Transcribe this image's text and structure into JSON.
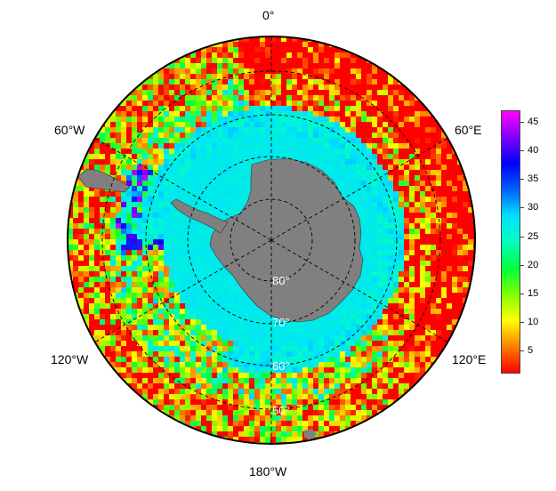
{
  "map": {
    "projection": "south-polar-stereographic",
    "longitude_labels": {
      "top": "0°",
      "upper_left": "60°W",
      "upper_right": "60°E",
      "lower_left": "120°W",
      "lower_right": "120°E",
      "bottom": "180°W"
    },
    "latitude_labels": {
      "lat80": "80°",
      "lat70": "70°",
      "lat60": "60°",
      "lat50": "50°"
    },
    "gridline_style": "dashed",
    "land_color": "#808080",
    "grid_color": "#000000",
    "lat_label_color": "#ffffff"
  },
  "colorbar": {
    "min": 1,
    "max": 47,
    "ticks": [
      "45",
      "40",
      "35",
      "30",
      "25",
      "20",
      "15",
      "10",
      "5"
    ],
    "colormap": [
      "#ff0000",
      "#ff8000",
      "#ffff00",
      "#80ff00",
      "#00ff40",
      "#00ffc0",
      "#00e0ff",
      "#0060ff",
      "#0000ff",
      "#8000ff",
      "#ff00ff"
    ]
  }
}
